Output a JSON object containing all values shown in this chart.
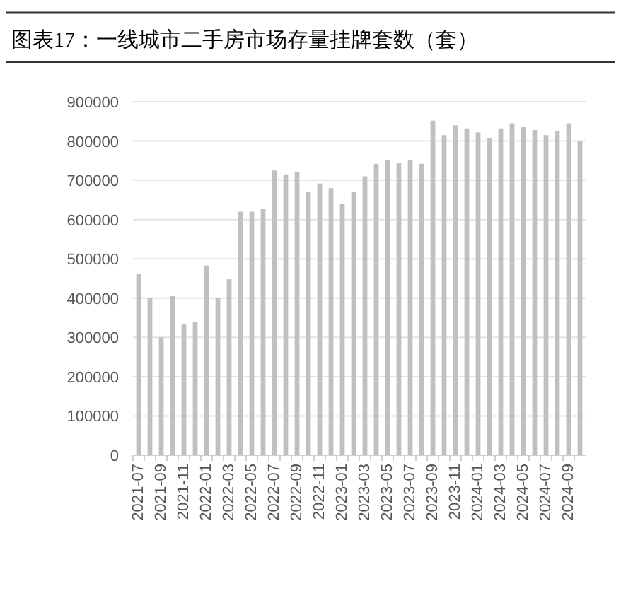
{
  "chart_data": {
    "type": "bar",
    "title": "图表17：一线城市二手房市场存量挂牌套数（套）",
    "categories": [
      "2021-07",
      null,
      "2021-09",
      null,
      "2021-11",
      null,
      "2022-01",
      null,
      "2022-03",
      null,
      "2022-05",
      null,
      "2022-07",
      null,
      "2022-09",
      null,
      "2022-11",
      null,
      "2023-01",
      null,
      "2023-03",
      null,
      "2023-05",
      null,
      "2023-07",
      null,
      "2023-09",
      null,
      "2023-11",
      null,
      "2024-01",
      null,
      "2024-03",
      null,
      "2024-05",
      null,
      "2024-07",
      null,
      "2024-09",
      null
    ],
    "values": [
      462000,
      400000,
      300000,
      405000,
      335000,
      340000,
      483000,
      400000,
      448000,
      620000,
      620000,
      628000,
      725000,
      715000,
      722000,
      670000,
      692000,
      680000,
      640000,
      670000,
      710000,
      742000,
      752000,
      745000,
      752000,
      742000,
      852000,
      815000,
      840000,
      832000,
      822000,
      808000,
      832000,
      845000,
      835000,
      828000,
      815000,
      825000,
      845000,
      800000
    ],
    "color": "#c0c0c0",
    "ylim": [
      0,
      900000
    ],
    "yticks": [
      0,
      100000,
      200000,
      300000,
      400000,
      500000,
      600000,
      700000,
      800000,
      900000
    ],
    "grid": "y"
  }
}
